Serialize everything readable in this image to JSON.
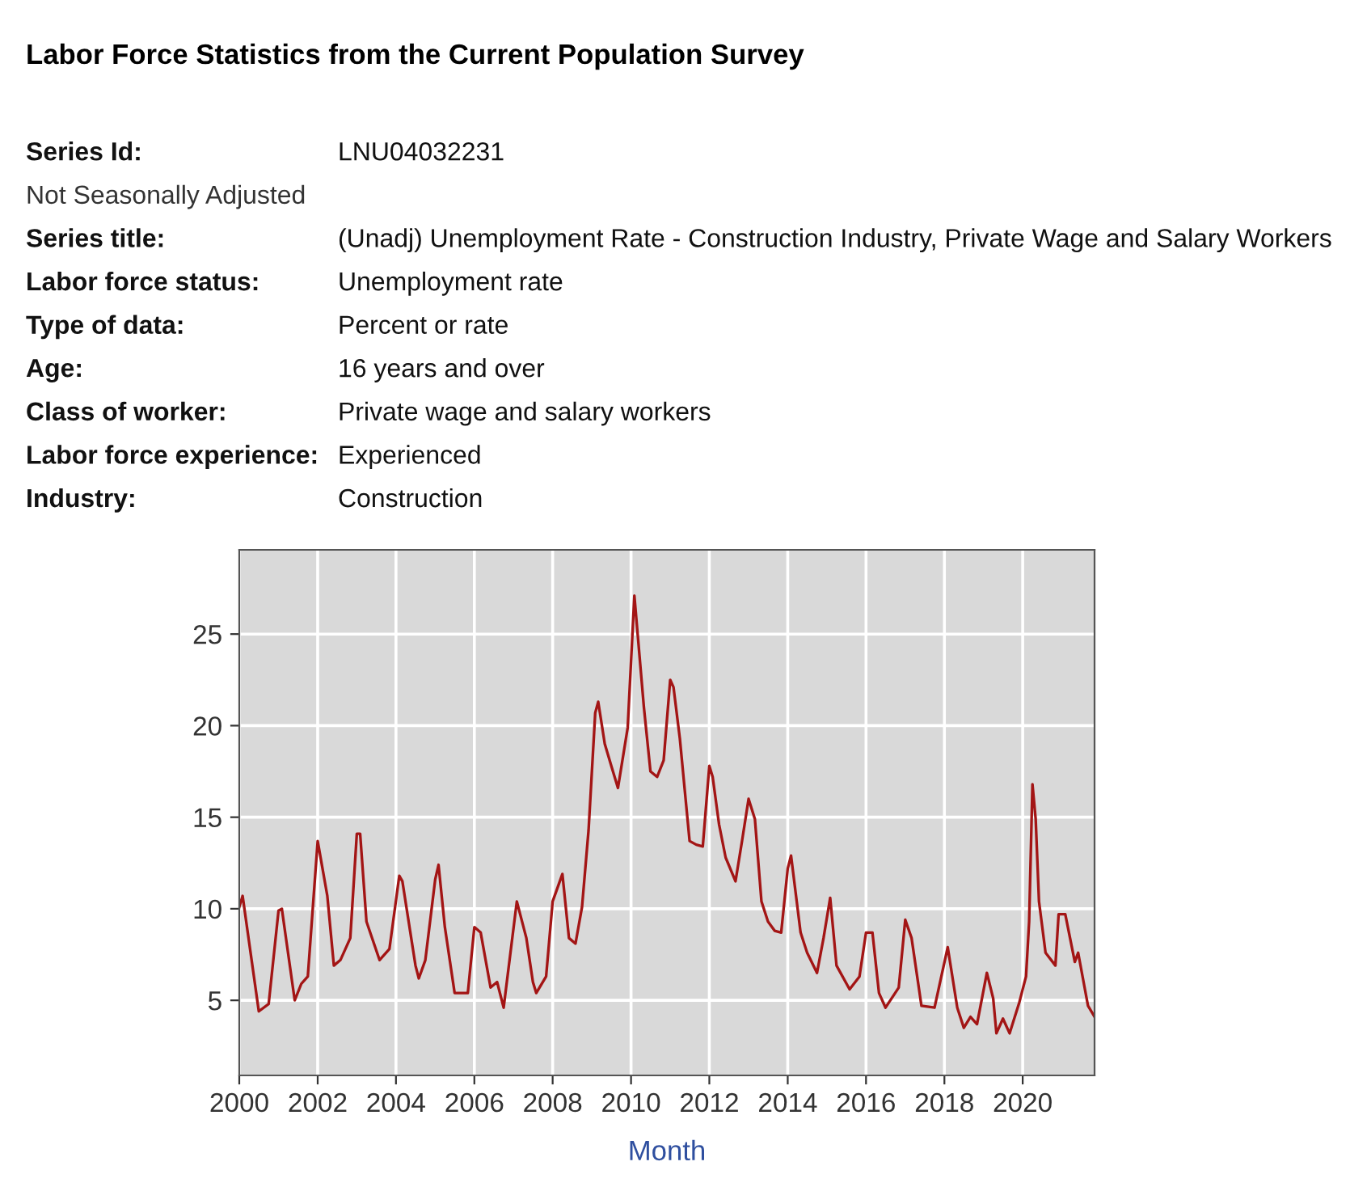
{
  "chart_data": {
    "type": "line",
    "title": "Labor Force Statistics from the Current Population Survey",
    "annotations": [
      "Series Id:",
      "LNU04032231",
      "Not Seasonally Adjusted",
      "Series title:",
      "(Unadj) Unemployment Rate - Construction Industry, Private Wage and Salary Workers",
      "Labor force status:",
      "Unemployment rate",
      "Type of data:",
      "Percent or rate",
      "Age:",
      "16 years and over",
      "Class of worker:",
      "Private wage and salary workers",
      "Labor force experience:",
      "Experienced",
      "Industry:",
      "Construction"
    ],
    "xlabel": "Month",
    "x": [
      "2000-01",
      "2000-02",
      "2000-07",
      "2000-10",
      "2001-01",
      "2001-02",
      "2001-06",
      "2001-08",
      "2001-10",
      "2002-01",
      "2002-04",
      "2002-06",
      "2002-08",
      "2002-11",
      "2003-01",
      "2003-02",
      "2003-04",
      "2003-08",
      "2003-11",
      "2004-02",
      "2004-03",
      "2004-07",
      "2004-08",
      "2004-10",
      "2005-01",
      "2005-02",
      "2005-04",
      "2005-07",
      "2005-11",
      "2006-01",
      "2006-03",
      "2006-06",
      "2006-08",
      "2006-10",
      "2007-02",
      "2007-05",
      "2007-07",
      "2007-08",
      "2007-11",
      "2008-01",
      "2008-04",
      "2008-06",
      "2008-08",
      "2008-10",
      "2008-12",
      "2009-02",
      "2009-03",
      "2009-05",
      "2009-07",
      "2009-09",
      "2009-12",
      "2010-02",
      "2010-05",
      "2010-07",
      "2010-09",
      "2010-11",
      "2011-01",
      "2011-02",
      "2011-04",
      "2011-07",
      "2011-09",
      "2011-11",
      "2012-01",
      "2012-02",
      "2012-04",
      "2012-06",
      "2012-09",
      "2012-11",
      "2013-01",
      "2013-03",
      "2013-05",
      "2013-07",
      "2013-09",
      "2013-11",
      "2014-01",
      "2014-02",
      "2014-05",
      "2014-07",
      "2014-10",
      "2014-12",
      "2015-02",
      "2015-04",
      "2015-08",
      "2015-11",
      "2016-01",
      "2016-03",
      "2016-05",
      "2016-07",
      "2016-11",
      "2017-01",
      "2017-03",
      "2017-06",
      "2017-10",
      "2018-02",
      "2018-05",
      "2018-07",
      "2018-09",
      "2018-11",
      "2019-02",
      "2019-04",
      "2019-05",
      "2019-07",
      "2019-09",
      "2019-12",
      "2020-02",
      "2020-03",
      "2020-04",
      "2020-05",
      "2020-06",
      "2020-08",
      "2020-11",
      "2020-12",
      "2021-02",
      "2021-05",
      "2021-06",
      "2021-09",
      "2021-11"
    ],
    "series": [
      {
        "color": "#a31515",
        "values": [
          10.1,
          10.7,
          4.4,
          4.8,
          9.9,
          10.0,
          5.0,
          5.9,
          6.3,
          13.7,
          10.7,
          6.9,
          7.2,
          8.4,
          14.1,
          14.1,
          9.3,
          7.2,
          7.8,
          11.8,
          11.5,
          6.9,
          6.2,
          7.2,
          11.6,
          12.4,
          9.0,
          5.4,
          5.4,
          9.0,
          8.7,
          5.7,
          6.0,
          4.6,
          10.4,
          8.4,
          6.0,
          5.4,
          6.3,
          10.4,
          11.9,
          8.4,
          8.1,
          10.1,
          14.3,
          20.7,
          21.3,
          19.0,
          17.8,
          16.6,
          19.9,
          27.1,
          21.0,
          17.5,
          17.2,
          18.1,
          22.5,
          22.1,
          19.3,
          13.7,
          13.5,
          13.4,
          17.8,
          17.2,
          14.6,
          12.8,
          11.5,
          13.7,
          16.0,
          14.9,
          10.4,
          9.3,
          8.8,
          8.7,
          12.2,
          12.9,
          8.7,
          7.6,
          6.5,
          8.4,
          10.6,
          6.9,
          5.6,
          6.3,
          8.7,
          8.7,
          5.4,
          4.6,
          5.7,
          9.4,
          8.4,
          4.7,
          4.6,
          7.9,
          4.6,
          3.5,
          4.1,
          3.7,
          6.5,
          5.1,
          3.2,
          4.0,
          3.2,
          4.9,
          6.3,
          9.3,
          16.8,
          14.9,
          10.4,
          7.6,
          6.9,
          9.7,
          9.7,
          7.1,
          7.6,
          4.7,
          4.1
        ]
      }
    ],
    "xlim": [
      "2000-01",
      "2021-11"
    ],
    "ylim": [
      0.9,
      29.6
    ],
    "xticks": [
      "2000",
      "2002",
      "2004",
      "2006",
      "2008",
      "2010",
      "2012",
      "2014",
      "2016",
      "2018",
      "2020"
    ],
    "yticks": [
      5,
      10,
      15,
      20,
      25
    ],
    "grid": true,
    "marker": "none",
    "line_style": "solid"
  }
}
